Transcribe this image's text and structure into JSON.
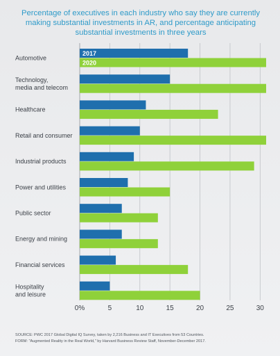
{
  "chart_data": {
    "type": "bar",
    "orientation": "horizontal",
    "title_lines": [
      "Percentage of executives in each industry who say they are currently",
      "making substantial investments in AR, and percentage anticipating",
      "substantial investments in three years"
    ],
    "categories": [
      [
        "Automotive"
      ],
      [
        "Technology,",
        "media and telecom"
      ],
      [
        "Healthcare"
      ],
      [
        "Retail and consumer"
      ],
      [
        "Industrial products"
      ],
      [
        "Power and utilities"
      ],
      [
        "Public sector"
      ],
      [
        "Energy and mining"
      ],
      [
        "Financial services"
      ],
      [
        "Hospitality",
        "and leisure"
      ]
    ],
    "series": [
      {
        "name": "2017",
        "values": [
          18,
          15,
          11,
          10,
          9,
          8,
          7,
          7,
          6,
          5
        ]
      },
      {
        "name": "2020",
        "values": [
          31,
          31,
          23,
          31,
          29,
          15,
          13,
          13,
          18,
          20
        ]
      }
    ],
    "xlim": [
      0,
      31
    ],
    "x_ticks": [
      "0%",
      "5",
      "10",
      "15",
      "20",
      "25",
      "30"
    ],
    "x_tick_values": [
      0,
      5,
      10,
      15,
      20,
      25,
      30
    ],
    "grid": true,
    "legend": "inside first category bars"
  },
  "colors": {
    "series_2017": "#1f6fad",
    "series_2020": "#8fd13a",
    "title": "#2f9bc9",
    "grid": "#bfc2c6"
  },
  "source_lines": [
    "SOURCE: PWC 2017 Global Digital IQ Survey, taken by 2,216 Business and IT Executives from 53 Countries.",
    "FORM: \"Augmented Reality in the Real World,\" by Harvard Business Review Staff, November-December 2017."
  ]
}
